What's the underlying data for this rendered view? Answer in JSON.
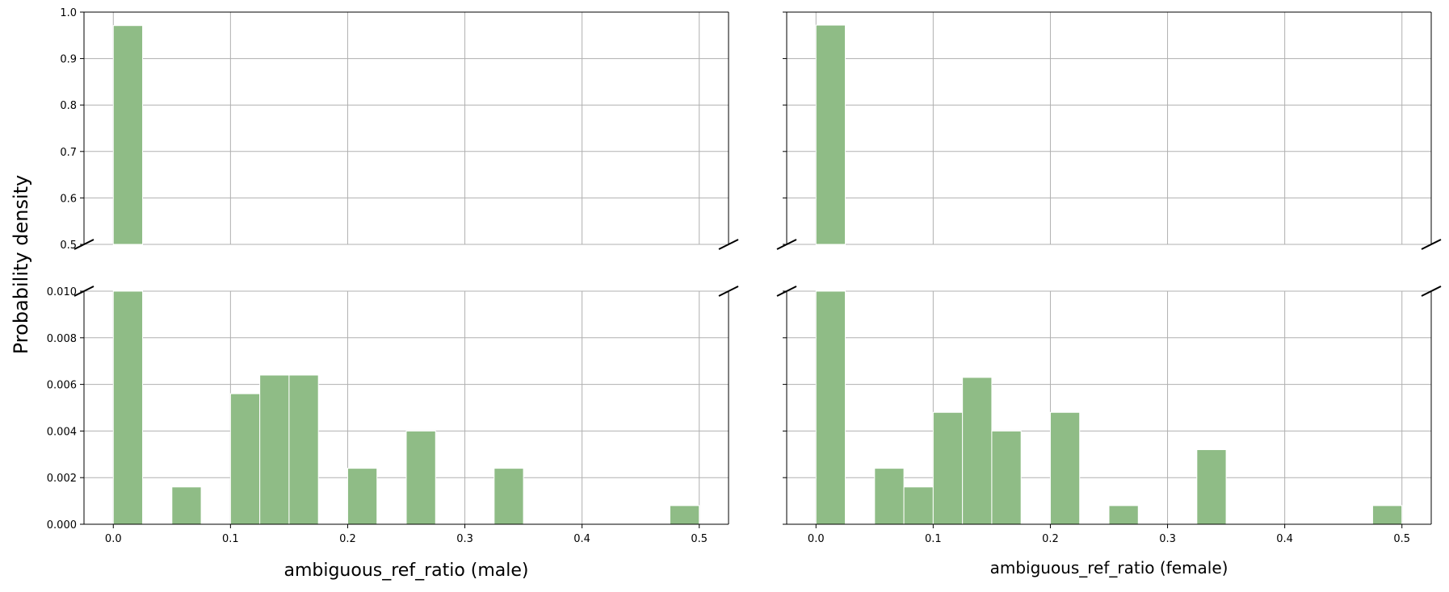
{
  "chart_data": {
    "type": "bar",
    "ylabel": "Probability density",
    "grid": true,
    "broken_y_axis": true,
    "bar_color": "#8fbc86",
    "bin_width": 0.025,
    "x_ticks": [
      "0.0",
      "0.1",
      "0.2",
      "0.3",
      "0.4",
      "0.5"
    ],
    "top_ylim": [
      0.5,
      1.0
    ],
    "top_y_ticks": [
      "0.5",
      "0.6",
      "0.7",
      "0.8",
      "0.9",
      "1.0"
    ],
    "bottom_ylim": [
      0.0,
      0.01
    ],
    "bottom_y_ticks": [
      "0.000",
      "0.002",
      "0.004",
      "0.006",
      "0.008",
      "0.010"
    ],
    "panels": [
      {
        "xlabel": "ambiguous_ref_ratio (male)",
        "bins": [
          {
            "x": 0.0,
            "value": 0.971
          },
          {
            "x": 0.05,
            "value": 0.0016
          },
          {
            "x": 0.1,
            "value": 0.0056
          },
          {
            "x": 0.125,
            "value": 0.0064
          },
          {
            "x": 0.15,
            "value": 0.0064
          },
          {
            "x": 0.2,
            "value": 0.0024
          },
          {
            "x": 0.25,
            "value": 0.004
          },
          {
            "x": 0.325,
            "value": 0.0024
          },
          {
            "x": 0.475,
            "value": 0.0008
          }
        ]
      },
      {
        "xlabel": "ambiguous_ref_ratio (female)",
        "bins": [
          {
            "x": 0.0,
            "value": 0.972
          },
          {
            "x": 0.05,
            "value": 0.0024
          },
          {
            "x": 0.075,
            "value": 0.0016
          },
          {
            "x": 0.1,
            "value": 0.0048
          },
          {
            "x": 0.125,
            "value": 0.0063
          },
          {
            "x": 0.15,
            "value": 0.004
          },
          {
            "x": 0.2,
            "value": 0.0048
          },
          {
            "x": 0.25,
            "value": 0.0008
          },
          {
            "x": 0.325,
            "value": 0.0032
          },
          {
            "x": 0.475,
            "value": 0.0008
          }
        ]
      }
    ]
  }
}
